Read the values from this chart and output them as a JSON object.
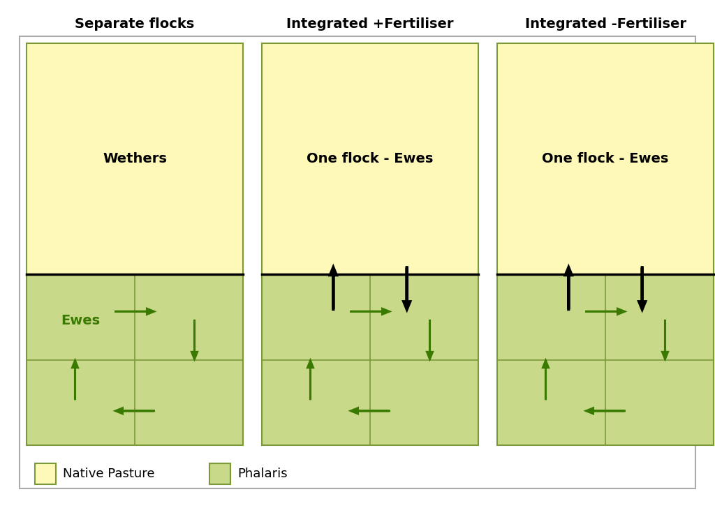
{
  "panel_titles": [
    "Separate flocks",
    "Integrated +Fertiliser",
    "Integrated -Fertiliser"
  ],
  "panel_labels_top": [
    "Wethers",
    "One flock - Ewes",
    "One flock - Ewes"
  ],
  "native_pasture_color": "#FEF9B8",
  "native_pasture_border": "#7A9A3A",
  "phalaris_color": "#C8D98A",
  "phalaris_border": "#7A9A3A",
  "background_color": "#FFFFFF",
  "outer_border_color": "#AAAAAA",
  "green_arrow_color": "#3A7A00",
  "black_arrow_color": "#000000",
  "legend_native_color": "#FEF9B8",
  "legend_phalaris_color": "#C8D98A",
  "legend_native_label": "Native Pasture",
  "legend_phalaris_label": "Phalaris",
  "title_fontsize": 14,
  "label_fontsize": 14,
  "legend_fontsize": 13,
  "ewes_label_fontsize": 14
}
